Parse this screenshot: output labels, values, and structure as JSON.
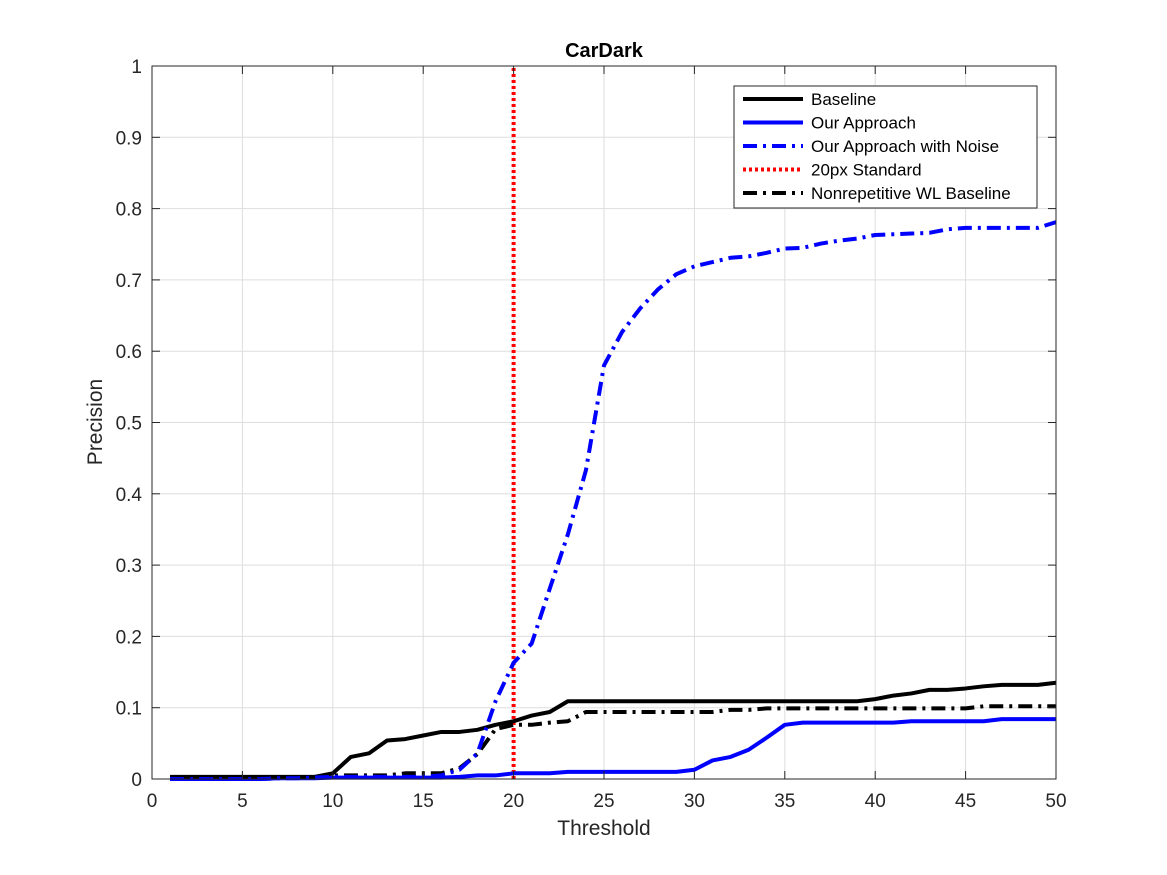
{
  "chart_data": {
    "type": "line",
    "title": "CarDark",
    "xlabel": "Threshold",
    "ylabel": "Precision",
    "xlim": [
      0,
      50
    ],
    "ylim": [
      0,
      1
    ],
    "xticks": [
      0,
      5,
      10,
      15,
      20,
      25,
      30,
      35,
      40,
      45,
      50
    ],
    "yticks": [
      0,
      0.1,
      0.2,
      0.3,
      0.4,
      0.5,
      0.6,
      0.7,
      0.8,
      0.9,
      1
    ],
    "ytick_labels": [
      "0",
      "0.1",
      "0.2",
      "0.3",
      "0.4",
      "0.5",
      "0.6",
      "0.7",
      "0.8",
      "0.9",
      "1"
    ],
    "grid": true,
    "legend_position": "top-right",
    "x": [
      1,
      2,
      3,
      4,
      5,
      6,
      7,
      8,
      9,
      10,
      11,
      12,
      13,
      14,
      15,
      16,
      17,
      18,
      19,
      20,
      21,
      22,
      23,
      24,
      25,
      26,
      27,
      28,
      29,
      30,
      31,
      32,
      33,
      34,
      35,
      36,
      37,
      38,
      39,
      40,
      41,
      42,
      43,
      44,
      45,
      46,
      47,
      48,
      49,
      50
    ],
    "series": [
      {
        "name": "Baseline",
        "color": "#000000",
        "style": "solid",
        "values": [
          0.003,
          0.003,
          0.003,
          0.003,
          0.003,
          0.003,
          0.003,
          0.003,
          0.003,
          0.008,
          0.031,
          0.036,
          0.054,
          0.056,
          0.061,
          0.066,
          0.066,
          0.069,
          0.076,
          0.081,
          0.089,
          0.094,
          0.109,
          0.109,
          0.109,
          0.109,
          0.109,
          0.109,
          0.109,
          0.109,
          0.109,
          0.109,
          0.109,
          0.109,
          0.109,
          0.109,
          0.109,
          0.109,
          0.109,
          0.112,
          0.117,
          0.12,
          0.125,
          0.125,
          0.127,
          0.13,
          0.132,
          0.132,
          0.132,
          0.135
        ]
      },
      {
        "name": "Our Approach",
        "color": "#0000ff",
        "style": "solid",
        "values": [
          0,
          0,
          0,
          0,
          0,
          0,
          0.001,
          0.001,
          0.001,
          0.002,
          0.002,
          0.002,
          0.002,
          0.002,
          0.002,
          0.002,
          0.003,
          0.005,
          0.005,
          0.008,
          0.008,
          0.008,
          0.01,
          0.01,
          0.01,
          0.01,
          0.01,
          0.01,
          0.01,
          0.013,
          0.026,
          0.031,
          0.041,
          0.058,
          0.076,
          0.079,
          0.079,
          0.079,
          0.079,
          0.079,
          0.079,
          0.081,
          0.081,
          0.081,
          0.081,
          0.081,
          0.084,
          0.084,
          0.084,
          0.084
        ]
      },
      {
        "name": "Our Approach with Noise",
        "color": "#0000ff",
        "style": "dashdot",
        "values": [
          0,
          0,
          0,
          0,
          0,
          0,
          0.001,
          0.001,
          0.002,
          0.003,
          0.003,
          0.003,
          0.003,
          0.003,
          0.003,
          0.005,
          0.013,
          0.036,
          0.109,
          0.163,
          0.19,
          0.267,
          0.343,
          0.433,
          0.58,
          0.627,
          0.66,
          0.687,
          0.708,
          0.719,
          0.725,
          0.731,
          0.733,
          0.738,
          0.744,
          0.745,
          0.751,
          0.755,
          0.758,
          0.763,
          0.764,
          0.765,
          0.766,
          0.771,
          0.773,
          0.773,
          0.773,
          0.773,
          0.773,
          0.781
        ]
      },
      {
        "name": "20px Standard",
        "color": "#ff0000",
        "style": "dotted",
        "x": [
          20,
          20
        ],
        "values": [
          0,
          1
        ]
      },
      {
        "name": "Nonrepetitive WL Baseline",
        "color": "#000000",
        "style": "dashdot",
        "values": [
          0.002,
          0.002,
          0.002,
          0.002,
          0.002,
          0.002,
          0.002,
          0.002,
          0.002,
          0.005,
          0.005,
          0.005,
          0.005,
          0.008,
          0.008,
          0.008,
          0.015,
          0.035,
          0.07,
          0.076,
          0.076,
          0.079,
          0.081,
          0.094,
          0.094,
          0.094,
          0.094,
          0.094,
          0.094,
          0.094,
          0.094,
          0.097,
          0.097,
          0.099,
          0.099,
          0.099,
          0.099,
          0.099,
          0.099,
          0.099,
          0.099,
          0.099,
          0.099,
          0.099,
          0.099,
          0.102,
          0.102,
          0.102,
          0.102,
          0.102
        ]
      }
    ]
  }
}
